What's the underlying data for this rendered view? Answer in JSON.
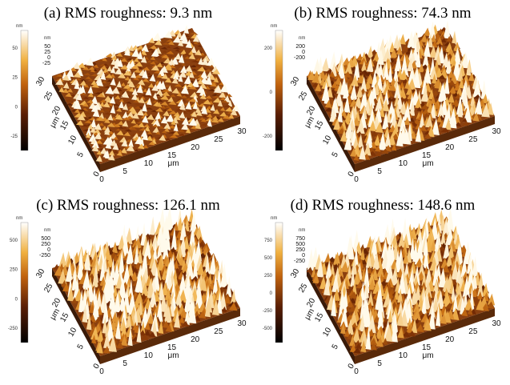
{
  "panels": [
    {
      "title": "(a) RMS roughness:  9.3 nm",
      "colorbar": {
        "unit": "nm",
        "ticks": [
          "50",
          "25",
          "0",
          "-25"
        ]
      },
      "z_axis": {
        "unit": "nm",
        "ticks": [
          "50",
          "25",
          "0",
          "-25"
        ]
      },
      "x_axis": {
        "unit": "μm",
        "ticks": [
          "0",
          "5",
          "10",
          "15",
          "20",
          "25",
          "30"
        ]
      },
      "y_axis": {
        "unit": "μm",
        "ticks": [
          "0",
          "5",
          "10",
          "15",
          "20",
          "25",
          "30"
        ]
      }
    },
    {
      "title": "(b) RMS roughness:  74.3 nm",
      "colorbar": {
        "unit": "nm",
        "ticks": [
          "200",
          "0",
          "-200"
        ]
      },
      "z_axis": {
        "unit": "nm",
        "ticks": [
          "200",
          "0",
          "-200"
        ]
      },
      "x_axis": {
        "unit": "μm",
        "ticks": [
          "0",
          "5",
          "10",
          "15",
          "20",
          "25",
          "30"
        ]
      },
      "y_axis": {
        "unit": "μm",
        "ticks": [
          "0",
          "5",
          "10",
          "15",
          "20",
          "25",
          "30"
        ]
      }
    },
    {
      "title": "(c) RMS roughness:  126.1 nm",
      "colorbar": {
        "unit": "nm",
        "ticks": [
          "500",
          "250",
          "0",
          "-250"
        ]
      },
      "z_axis": {
        "unit": "nm",
        "ticks": [
          "500",
          "250",
          "0",
          "-250"
        ]
      },
      "x_axis": {
        "unit": "μm",
        "ticks": [
          "0",
          "5",
          "10",
          "15",
          "20",
          "25",
          "30"
        ]
      },
      "y_axis": {
        "unit": "μm",
        "ticks": [
          "0",
          "5",
          "10",
          "15",
          "20",
          "25",
          "30"
        ]
      }
    },
    {
      "title": "(d) RMS roughness:  148.6 nm",
      "colorbar": {
        "unit": "nm",
        "ticks": [
          "750",
          "500",
          "250",
          "0",
          "-250",
          "-500"
        ]
      },
      "z_axis": {
        "unit": "nm",
        "ticks": [
          "750",
          "500",
          "250",
          "0",
          "-250"
        ]
      },
      "x_axis": {
        "unit": "μm",
        "ticks": [
          "0",
          "5",
          "10",
          "15",
          "20",
          "25",
          "30"
        ]
      },
      "y_axis": {
        "unit": "μm",
        "ticks": [
          "0",
          "5",
          "10",
          "15",
          "20",
          "25",
          "30"
        ]
      }
    }
  ]
}
